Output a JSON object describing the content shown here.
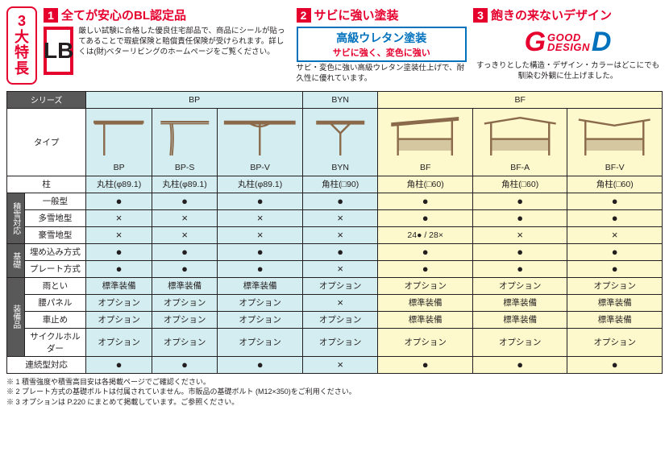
{
  "badge": [
    "3",
    "大",
    "特",
    "長"
  ],
  "feat1": {
    "num": "1",
    "title": "全てが安心のBL認定品",
    "lb": "LB",
    "text": "厳しい試験に合格した優良住宅部品で、商品にシールが貼ってあることで瑕疵保険と賠償責任保険が受けられます。詳しくは(財)ベターリビングのホームページをご覧ください。"
  },
  "feat2": {
    "num": "2",
    "title": "サビに強い塗装",
    "box1": "高級ウレタン塗装",
    "box2": "サビに強く、変色に強い",
    "text": "サビ・変色に強い高級ウレタン塗装仕上げで、耐久性に優れています。"
  },
  "feat3": {
    "num": "3",
    "title": "飽きの来ないデザイン",
    "g": "G",
    "d": "D",
    "m1": "GOOD",
    "m2": "DESIGN",
    "text": "すっきりとした構造・デザイン・カラーはどこにでも馴染む外観に仕上げました。"
  },
  "hdr": {
    "series": "シリーズ",
    "type": "タイプ",
    "bp": "BP",
    "byn": "BYN",
    "bf": "BF",
    "sub": [
      "BP",
      "BP-S",
      "BP-V",
      "BYN",
      "BF",
      "BF-A",
      "BF-V"
    ]
  },
  "rows": {
    "pillar": {
      "label": "柱",
      "vals": [
        "丸柱(φ89.1)",
        "丸柱(φ89.1)",
        "丸柱(φ89.1)",
        "角柱(□90)",
        "角柱(□60)",
        "角柱(□60)",
        "角柱(□60)"
      ]
    },
    "g1": {
      "head": "積雪対応",
      "r": [
        {
          "l": "一般型",
          "v": [
            "●",
            "●",
            "●",
            "●",
            "●",
            "●",
            "●"
          ]
        },
        {
          "l": "多雪地型",
          "v": [
            "×",
            "×",
            "×",
            "×",
            "●",
            "●",
            "●"
          ]
        },
        {
          "l": "豪雪地型",
          "v": [
            "×",
            "×",
            "×",
            "×",
            "24● / 28×",
            "×",
            "×"
          ]
        }
      ]
    },
    "g2": {
      "head": "基礎",
      "r": [
        {
          "l": "埋め込み方式",
          "v": [
            "●",
            "●",
            "●",
            "●",
            "●",
            "●",
            "●"
          ]
        },
        {
          "l": "プレート方式",
          "v": [
            "●",
            "●",
            "●",
            "×",
            "●",
            "●",
            "●"
          ]
        }
      ]
    },
    "g3": {
      "head": "装備品",
      "r": [
        {
          "l": "雨とい",
          "v": [
            "標準装備",
            "標準装備",
            "標準装備",
            "オプション",
            "オプション",
            "オプション",
            "オプション"
          ]
        },
        {
          "l": "腰パネル",
          "v": [
            "オプション",
            "オプション",
            "オプション",
            "×",
            "標準装備",
            "標準装備",
            "標準装備"
          ]
        },
        {
          "l": "車止め",
          "v": [
            "オプション",
            "オプション",
            "オプション",
            "オプション",
            "標準装備",
            "標準装備",
            "標準装備"
          ]
        },
        {
          "l": "サイクルホルダー",
          "v": [
            "オプション",
            "オプション",
            "オプション",
            "オプション",
            "オプション",
            "オプション",
            "オプション"
          ]
        }
      ]
    },
    "last": {
      "l": "連続型対応",
      "v": [
        "●",
        "●",
        "●",
        "×",
        "●",
        "●",
        "●"
      ]
    }
  },
  "notes": [
    "※ 1 積雪強度や積雪高目安は各掲載ページでご確認ください。",
    "※ 2 プレート方式の基礎ボルトは付属されていません。市販品の基礎ボルト (M12×350)をご利用ください。",
    "※ 3 オプションは P.220 にまとめて掲載しています。ご参照ください。"
  ],
  "colors": {
    "red": "#e6002e",
    "blue": "#0071bc",
    "bp": "#d4edf0",
    "bf": "#fef9cc",
    "line": "#231f20",
    "grey": "#595959"
  }
}
